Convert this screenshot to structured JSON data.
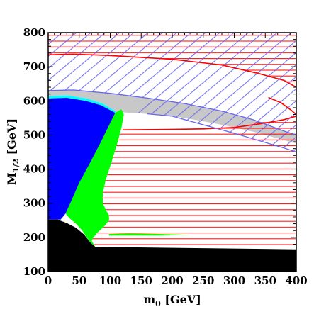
{
  "chart_data": {
    "type": "area",
    "title": "",
    "xlabel": {
      "main": "m",
      "sub": "0",
      "unit": " [GeV]"
    },
    "ylabel": {
      "main": "M",
      "sub": "1/2",
      "unit": " [GeV]"
    },
    "xlim": [
      0,
      400
    ],
    "ylim": [
      100,
      800
    ],
    "xticks": [
      0,
      50,
      100,
      150,
      200,
      250,
      300,
      350,
      400
    ],
    "yticks": [
      100,
      200,
      300,
      400,
      500,
      600,
      700,
      800
    ],
    "grid": false,
    "legend": "none",
    "colors": {
      "black_region": "#000000",
      "blue_region": "#0000ff",
      "green_region": "#00ff00",
      "cyan_band": "#00ffff",
      "gray_region": "#c8c8c8",
      "red_lines": "#ff0000",
      "blue_hatch": "#6666ee"
    },
    "regions": {
      "black_excluded": [
        [
          0,
          100
        ],
        [
          0,
          252
        ],
        [
          15,
          252
        ],
        [
          30,
          242
        ],
        [
          45,
          228
        ],
        [
          58,
          208
        ],
        [
          68,
          185
        ],
        [
          76,
          172
        ],
        [
          400,
          165
        ],
        [
          400,
          100
        ]
      ],
      "blue_region": [
        [
          0,
          252
        ],
        [
          0,
          607
        ],
        [
          30,
          609
        ],
        [
          60,
          600
        ],
        [
          85,
          587
        ],
        [
          108,
          565
        ],
        [
          85,
          480
        ],
        [
          65,
          410
        ],
        [
          50,
          360
        ],
        [
          38,
          310
        ],
        [
          28,
          270
        ],
        [
          20,
          252
        ]
      ],
      "green_strip": [
        [
          108,
          565
        ],
        [
          118,
          575
        ],
        [
          122,
          560
        ],
        [
          118,
          520
        ],
        [
          112,
          480
        ],
        [
          102,
          420
        ],
        [
          93,
          370
        ],
        [
          88,
          330
        ],
        [
          88,
          300
        ],
        [
          93,
          280
        ],
        [
          98,
          265
        ],
        [
          98,
          250
        ],
        [
          90,
          232
        ],
        [
          80,
          215
        ],
        [
          73,
          200
        ],
        [
          70,
          190
        ],
        [
          76,
          172
        ],
        [
          68,
          185
        ],
        [
          62,
          200
        ],
        [
          55,
          220
        ],
        [
          45,
          240
        ],
        [
          35,
          255
        ],
        [
          28,
          270
        ],
        [
          38,
          310
        ],
        [
          50,
          360
        ],
        [
          65,
          410
        ],
        [
          85,
          480
        ]
      ],
      "green_tail": [
        [
          98,
          210
        ],
        [
          130,
          212
        ],
        [
          180,
          210
        ],
        [
          230,
          207
        ],
        [
          180,
          205
        ],
        [
          130,
          205
        ],
        [
          98,
          205
        ]
      ],
      "cyan_band": [
        [
          0,
          607
        ],
        [
          30,
          609
        ],
        [
          60,
          600
        ],
        [
          85,
          587
        ],
        [
          108,
          565
        ],
        [
          110,
          568
        ],
        [
          88,
          592
        ],
        [
          62,
          607
        ],
        [
          30,
          616
        ],
        [
          0,
          614
        ]
      ],
      "gray_band": [
        [
          0,
          614
        ],
        [
          0,
          630
        ],
        [
          40,
          632
        ],
        [
          100,
          622
        ],
        [
          160,
          608
        ],
        [
          220,
          592
        ],
        [
          280,
          570
        ],
        [
          330,
          545
        ],
        [
          380,
          512
        ],
        [
          400,
          500
        ],
        [
          400,
          475
        ],
        [
          370,
          490
        ],
        [
          330,
          510
        ],
        [
          285,
          528
        ],
        [
          245,
          542
        ],
        [
          200,
          556
        ],
        [
          160,
          562
        ],
        [
          125,
          566
        ],
        [
          110,
          568
        ],
        [
          88,
          592
        ],
        [
          62,
          607
        ],
        [
          30,
          616
        ]
      ],
      "blue_hatched": [
        [
          0,
          630
        ],
        [
          0,
          800
        ],
        [
          400,
          800
        ],
        [
          400,
          450
        ],
        [
          380,
          462
        ],
        [
          350,
          478
        ],
        [
          300,
          505
        ],
        [
          250,
          530
        ],
        [
          200,
          555
        ],
        [
          160,
          562
        ],
        [
          125,
          566
        ],
        [
          160,
          608
        ],
        [
          100,
          622
        ],
        [
          40,
          632
        ]
      ],
      "red_hatched_top": [
        [
          0,
          735
        ],
        [
          0,
          800
        ],
        [
          400,
          800
        ],
        [
          400,
          640
        ],
        [
          380,
          660
        ],
        [
          340,
          680
        ],
        [
          280,
          705
        ],
        [
          200,
          722
        ],
        [
          100,
          733
        ],
        [
          40,
          737
        ]
      ],
      "red_hatched_bottom": [
        [
          76,
          172
        ],
        [
          400,
          165
        ],
        [
          400,
          555
        ],
        [
          380,
          550
        ],
        [
          340,
          538
        ],
        [
          300,
          527
        ],
        [
          260,
          520
        ],
        [
          200,
          517
        ],
        [
          150,
          515
        ],
        [
          118,
          515
        ],
        [
          112,
          480
        ],
        [
          102,
          420
        ],
        [
          93,
          370
        ],
        [
          88,
          330
        ],
        [
          88,
          300
        ],
        [
          93,
          280
        ],
        [
          98,
          265
        ],
        [
          98,
          250
        ],
        [
          90,
          232
        ],
        [
          80,
          215
        ],
        [
          73,
          200
        ],
        [
          70,
          190
        ]
      ]
    },
    "red_curves": [
      [
        [
          0,
          735
        ],
        [
          40,
          737
        ],
        [
          100,
          733
        ],
        [
          200,
          722
        ],
        [
          280,
          705
        ],
        [
          340,
          680
        ],
        [
          380,
          660
        ],
        [
          400,
          640
        ]
      ],
      [
        [
          120,
          515
        ],
        [
          180,
          516
        ],
        [
          250,
          518
        ],
        [
          300,
          522
        ],
        [
          350,
          535
        ],
        [
          380,
          545
        ],
        [
          400,
          555
        ]
      ],
      [
        [
          355,
          610
        ],
        [
          375,
          595
        ],
        [
          390,
          575
        ],
        [
          400,
          560
        ]
      ]
    ],
    "blue_curves": [
      [
        [
          0,
          630
        ],
        [
          40,
          632
        ],
        [
          100,
          622
        ],
        [
          160,
          608
        ],
        [
          220,
          592
        ],
        [
          280,
          570
        ],
        [
          330,
          545
        ],
        [
          380,
          512
        ],
        [
          400,
          500
        ]
      ],
      [
        [
          160,
          562
        ],
        [
          200,
          555
        ],
        [
          250,
          530
        ],
        [
          300,
          505
        ],
        [
          350,
          478
        ],
        [
          380,
          462
        ],
        [
          400,
          450
        ]
      ]
    ]
  }
}
